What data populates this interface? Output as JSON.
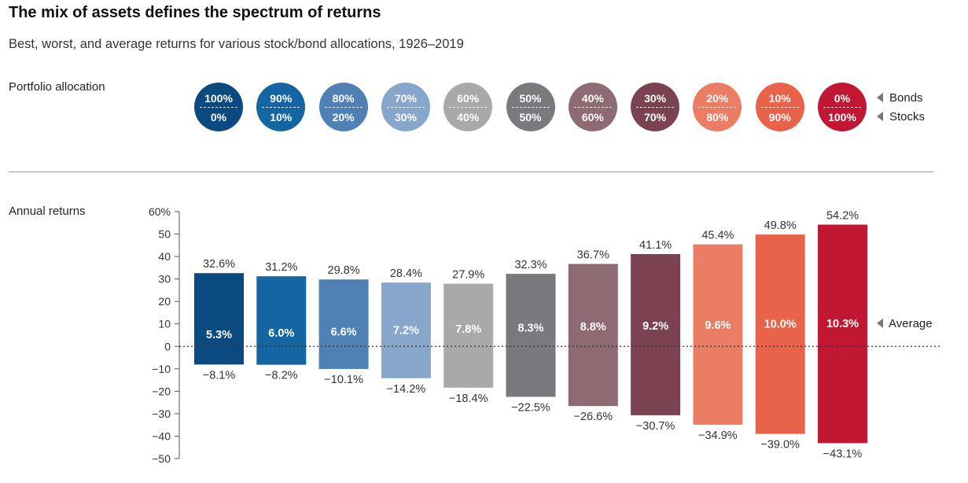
{
  "title": "The mix of assets defines the spectrum of returns",
  "subtitle": "Best, worst, and average returns for various stock/bond allocations, 1926–2019",
  "allocation": {
    "label": "Portfolio allocation",
    "bonds_label": "Bonds",
    "stocks_label": "Stocks",
    "items": [
      {
        "bonds": "100%",
        "stocks": "0%",
        "color": "#0b4a80"
      },
      {
        "bonds": "90%",
        "stocks": "10%",
        "color": "#1465a1"
      },
      {
        "bonds": "80%",
        "stocks": "20%",
        "color": "#4f81b5"
      },
      {
        "bonds": "70%",
        "stocks": "30%",
        "color": "#87a6cb"
      },
      {
        "bonds": "60%",
        "stocks": "40%",
        "color": "#a8a9ab"
      },
      {
        "bonds": "50%",
        "stocks": "50%",
        "color": "#7a7a7e"
      },
      {
        "bonds": "40%",
        "stocks": "60%",
        "color": "#8e6a72"
      },
      {
        "bonds": "30%",
        "stocks": "70%",
        "color": "#7b4351"
      },
      {
        "bonds": "20%",
        "stocks": "80%",
        "color": "#ec7d65"
      },
      {
        "bonds": "10%",
        "stocks": "90%",
        "color": "#e8634a"
      },
      {
        "bonds": "0%",
        "stocks": "100%",
        "color": "#c21732"
      }
    ]
  },
  "returns_label": "Annual returns",
  "chart_data": {
    "type": "bar",
    "ylim": [
      -50,
      60
    ],
    "yticks": [
      {
        "value": 60,
        "label": "60%"
      },
      {
        "value": 50,
        "label": "50"
      },
      {
        "value": 40,
        "label": "40"
      },
      {
        "value": 30,
        "label": "30"
      },
      {
        "value": 20,
        "label": "20"
      },
      {
        "value": 10,
        "label": "10"
      },
      {
        "value": 0,
        "label": "0"
      },
      {
        "value": -10,
        "label": "−10"
      },
      {
        "value": -20,
        "label": "−20"
      },
      {
        "value": -30,
        "label": "−30"
      },
      {
        "value": -40,
        "label": "−40"
      },
      {
        "value": -50,
        "label": "−50"
      }
    ],
    "series": [
      {
        "best": 32.6,
        "worst": -8.1,
        "average": 5.3,
        "best_label": "32.6%",
        "worst_label": "−8.1%",
        "average_label": "5.3%"
      },
      {
        "best": 31.2,
        "worst": -8.2,
        "average": 6.0,
        "best_label": "31.2%",
        "worst_label": "−8.2%",
        "average_label": "6.0%"
      },
      {
        "best": 29.8,
        "worst": -10.1,
        "average": 6.6,
        "best_label": "29.8%",
        "worst_label": "−10.1%",
        "average_label": "6.6%"
      },
      {
        "best": 28.4,
        "worst": -14.2,
        "average": 7.2,
        "best_label": "28.4%",
        "worst_label": "−14.2%",
        "average_label": "7.2%"
      },
      {
        "best": 27.9,
        "worst": -18.4,
        "average": 7.8,
        "best_label": "27.9%",
        "worst_label": "−18.4%",
        "average_label": "7.8%"
      },
      {
        "best": 32.3,
        "worst": -22.5,
        "average": 8.3,
        "best_label": "32.3%",
        "worst_label": "−22.5%",
        "average_label": "8.3%"
      },
      {
        "best": 36.7,
        "worst": -26.6,
        "average": 8.8,
        "best_label": "36.7%",
        "worst_label": "−26.6%",
        "average_label": "8.8%"
      },
      {
        "best": 41.1,
        "worst": -30.7,
        "average": 9.2,
        "best_label": "41.1%",
        "worst_label": "−30.7%",
        "average_label": "9.2%"
      },
      {
        "best": 45.4,
        "worst": -34.9,
        "average": 9.6,
        "best_label": "45.4%",
        "worst_label": "−34.9%",
        "average_label": "9.6%"
      },
      {
        "best": 49.8,
        "worst": -39.0,
        "average": 10.0,
        "best_label": "49.8%",
        "worst_label": "−39.0%",
        "average_label": "10.0%"
      },
      {
        "best": 54.2,
        "worst": -43.1,
        "average": 10.3,
        "best_label": "54.2%",
        "worst_label": "−43.1%",
        "average_label": "10.3%"
      }
    ],
    "average_marker_label": "Average"
  }
}
